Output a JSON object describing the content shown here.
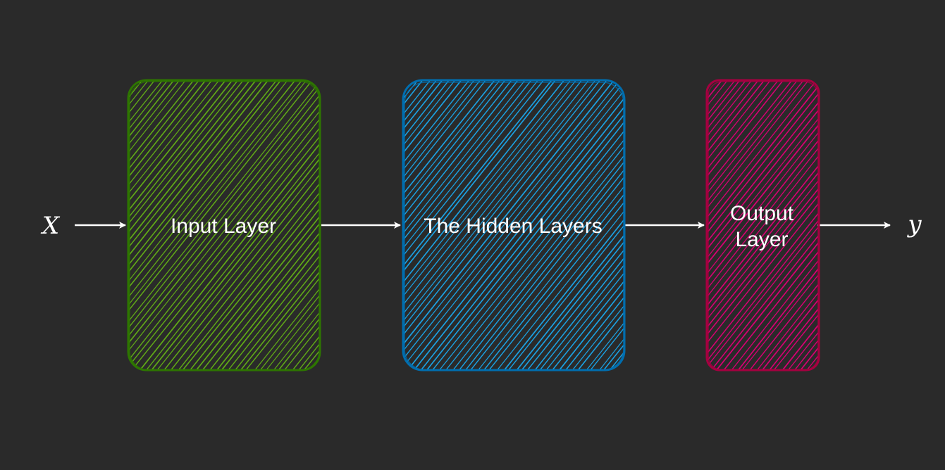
{
  "diagram": {
    "input_var": "X",
    "output_var": "y",
    "nodes": [
      {
        "id": "input",
        "label_lines": [
          "Input Layer"
        ],
        "stroke": "#2d7600",
        "hatch": "#60a917"
      },
      {
        "id": "hidden",
        "label_lines": [
          "The Hidden Layers"
        ],
        "stroke": "#006eaf",
        "hatch": "#1ba1e2"
      },
      {
        "id": "output",
        "label_lines": [
          "Output",
          "Layer"
        ],
        "stroke": "#a50040",
        "hatch": "#d80073"
      }
    ],
    "edges": [
      {
        "from": "X",
        "to": "input"
      },
      {
        "from": "input",
        "to": "hidden"
      },
      {
        "from": "hidden",
        "to": "output"
      },
      {
        "from": "output",
        "to": "y"
      }
    ],
    "colors": {
      "background": "#2a2a2a",
      "arrow": "#ffffff",
      "text": "#ffffff"
    }
  }
}
